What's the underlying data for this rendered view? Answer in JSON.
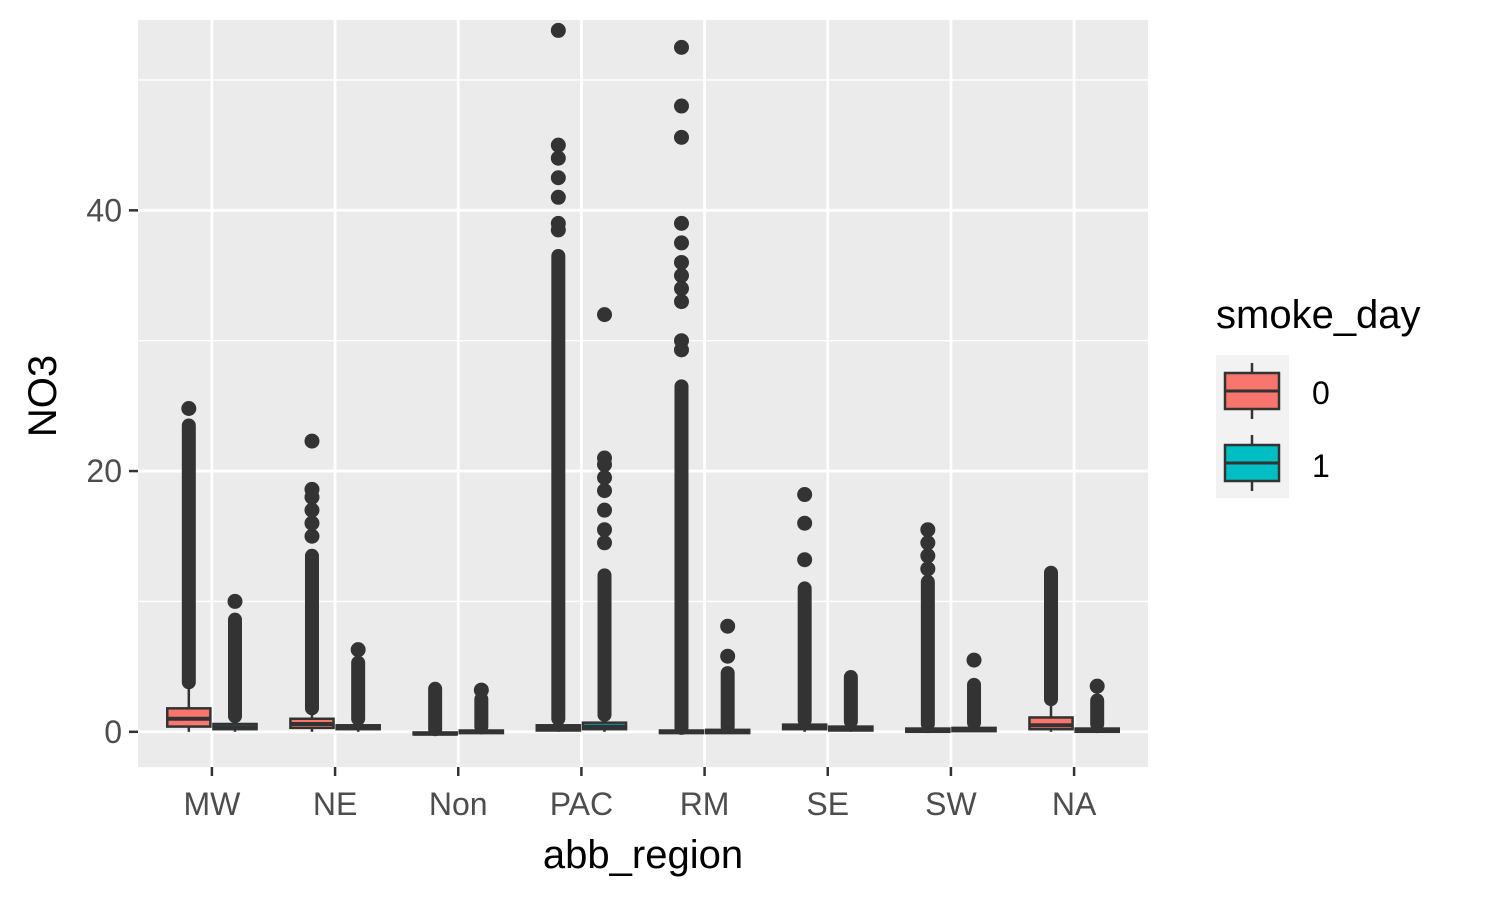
{
  "chart_data": {
    "type": "boxplot",
    "title": "",
    "xlabel": "abb_region",
    "ylabel": "NO3",
    "categories": [
      "MW",
      "NE",
      "Non",
      "PAC",
      "RM",
      "SE",
      "SW",
      "NA"
    ],
    "ylim": [
      -2.7,
      54.6
    ],
    "yticks": [
      0,
      20,
      40
    ],
    "grid": true,
    "legend": {
      "title": "smoke_day",
      "placement": "right",
      "entries": [
        {
          "label": "0",
          "color": "#F8766D"
        },
        {
          "label": "1",
          "color": "#00BFC4"
        }
      ]
    },
    "series": [
      {
        "name": "0",
        "color": "#F8766D",
        "boxes": [
          {
            "q1": 0.4,
            "median": 1.0,
            "q3": 1.8,
            "whisker_low": 0.0,
            "whisker_high": 3.5,
            "outlier_ranges": [
              [
                3.8,
                23.5
              ]
            ],
            "outliers": [
              24.8
            ]
          },
          {
            "q1": 0.3,
            "median": 0.6,
            "q3": 1.0,
            "whisker_low": 0.0,
            "whisker_high": 1.6,
            "outlier_ranges": [
              [
                1.8,
                13.5
              ]
            ],
            "outliers": [
              15.0,
              16.0,
              17.0,
              18.0,
              18.6,
              22.3
            ]
          },
          {
            "q1": -0.2,
            "median": -0.15,
            "q3": -0.05,
            "whisker_low": -0.2,
            "whisker_high": 0.1,
            "outlier_ranges": [
              [
                0.2,
                3.3
              ]
            ],
            "outliers": []
          },
          {
            "q1": 0.1,
            "median": 0.3,
            "q3": 0.5,
            "whisker_low": 0.0,
            "whisker_high": 1.0,
            "outlier_ranges": [
              [
                1.0,
                36.5
              ]
            ],
            "outliers": [
              38.5,
              39.0,
              41.0,
              42.5,
              44.0,
              45.0,
              53.8
            ]
          },
          {
            "q1": -0.1,
            "median": 0.0,
            "q3": 0.1,
            "whisker_low": -0.1,
            "whisker_high": 0.3,
            "outlier_ranges": [
              [
                0.3,
                26.5
              ]
            ],
            "outliers": [
              29.3,
              30.0,
              33.0,
              34.0,
              35.0,
              36.0,
              37.5,
              39.0,
              45.6,
              48.0,
              52.5
            ]
          },
          {
            "q1": 0.2,
            "median": 0.35,
            "q3": 0.55,
            "whisker_low": 0.0,
            "whisker_high": 0.9,
            "outlier_ranges": [
              [
                0.9,
                11.0
              ]
            ],
            "outliers": [
              13.2,
              16.0,
              18.2
            ]
          },
          {
            "q1": 0.0,
            "median": 0.1,
            "q3": 0.25,
            "whisker_low": -0.1,
            "whisker_high": 0.5,
            "outlier_ranges": [
              [
                0.6,
                11.5
              ]
            ],
            "outliers": [
              12.5,
              13.5,
              14.5,
              15.5
            ]
          },
          {
            "q1": 0.2,
            "median": 0.5,
            "q3": 1.1,
            "whisker_low": 0.0,
            "whisker_high": 2.3,
            "outlier_ranges": [
              [
                2.5,
                12.2
              ]
            ],
            "outliers": []
          }
        ]
      },
      {
        "name": "1",
        "color": "#00BFC4",
        "boxes": [
          {
            "q1": 0.2,
            "median": 0.35,
            "q3": 0.6,
            "whisker_low": 0.0,
            "whisker_high": 1.1,
            "outlier_ranges": [
              [
                1.2,
                8.6
              ]
            ],
            "outliers": [
              10.0
            ]
          },
          {
            "q1": 0.2,
            "median": 0.3,
            "q3": 0.5,
            "whisker_low": 0.0,
            "whisker_high": 0.8,
            "outlier_ranges": [
              [
                1.0,
                5.3
              ]
            ],
            "outliers": [
              6.3
            ]
          },
          {
            "q1": -0.1,
            "median": 0.0,
            "q3": 0.1,
            "whisker_low": -0.2,
            "whisker_high": 0.3,
            "outlier_ranges": [
              [
                0.4,
                2.5
              ]
            ],
            "outliers": [
              3.2
            ]
          },
          {
            "q1": 0.2,
            "median": 0.4,
            "q3": 0.7,
            "whisker_low": 0.0,
            "whisker_high": 1.2,
            "outlier_ranges": [
              [
                1.3,
                12.0
              ]
            ],
            "outliers": [
              14.5,
              15.5,
              17.0,
              18.5,
              19.5,
              20.5,
              21.0,
              32.0
            ]
          },
          {
            "q1": -0.1,
            "median": 0.0,
            "q3": 0.15,
            "whisker_low": -0.1,
            "whisker_high": 0.35,
            "outlier_ranges": [
              [
                0.4,
                4.5
              ]
            ],
            "outliers": [
              5.8,
              8.1
            ]
          },
          {
            "q1": 0.1,
            "median": 0.25,
            "q3": 0.4,
            "whisker_low": 0.0,
            "whisker_high": 0.7,
            "outlier_ranges": [
              [
                0.8,
                4.2
              ]
            ],
            "outliers": []
          },
          {
            "q1": 0.05,
            "median": 0.15,
            "q3": 0.3,
            "whisker_low": 0.0,
            "whisker_high": 0.6,
            "outlier_ranges": [
              [
                0.7,
                3.6
              ]
            ],
            "outliers": [
              5.5
            ]
          },
          {
            "q1": 0.0,
            "median": 0.1,
            "q3": 0.25,
            "whisker_low": -0.1,
            "whisker_high": 0.5,
            "outlier_ranges": [
              [
                0.6,
                2.4
              ]
            ],
            "outliers": [
              3.5
            ]
          }
        ]
      }
    ]
  }
}
